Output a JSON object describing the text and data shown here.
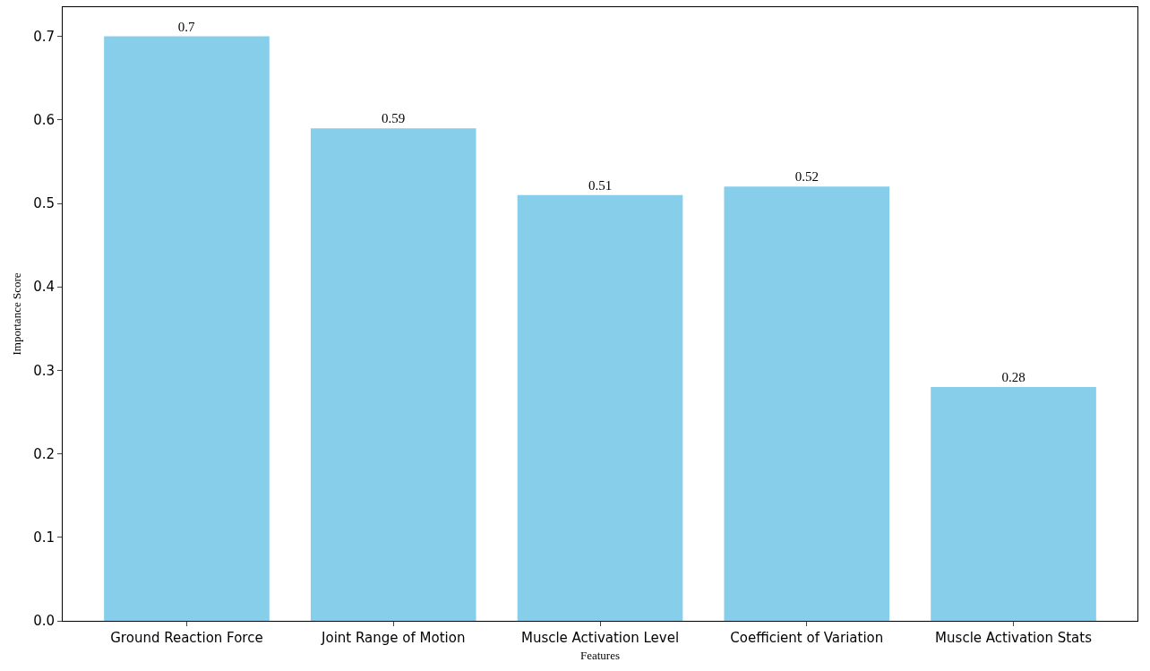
{
  "chart_data": {
    "type": "bar",
    "xlabel": "Features",
    "ylabel": "Importance Score",
    "categories": [
      "Ground Reaction Force",
      "Joint Range of Motion",
      "Muscle Activation Level",
      "Coefficient of Variation",
      "Muscle Activation Stats"
    ],
    "values": [
      0.7,
      0.59,
      0.51,
      0.52,
      0.28
    ],
    "color": "#87ceeb",
    "data_labels": true,
    "ylim": [
      0,
      0.735
    ],
    "yticks": [
      "0.0",
      0.1,
      0.2,
      0.3,
      0.4,
      0.5,
      0.6,
      0.7
    ]
  }
}
